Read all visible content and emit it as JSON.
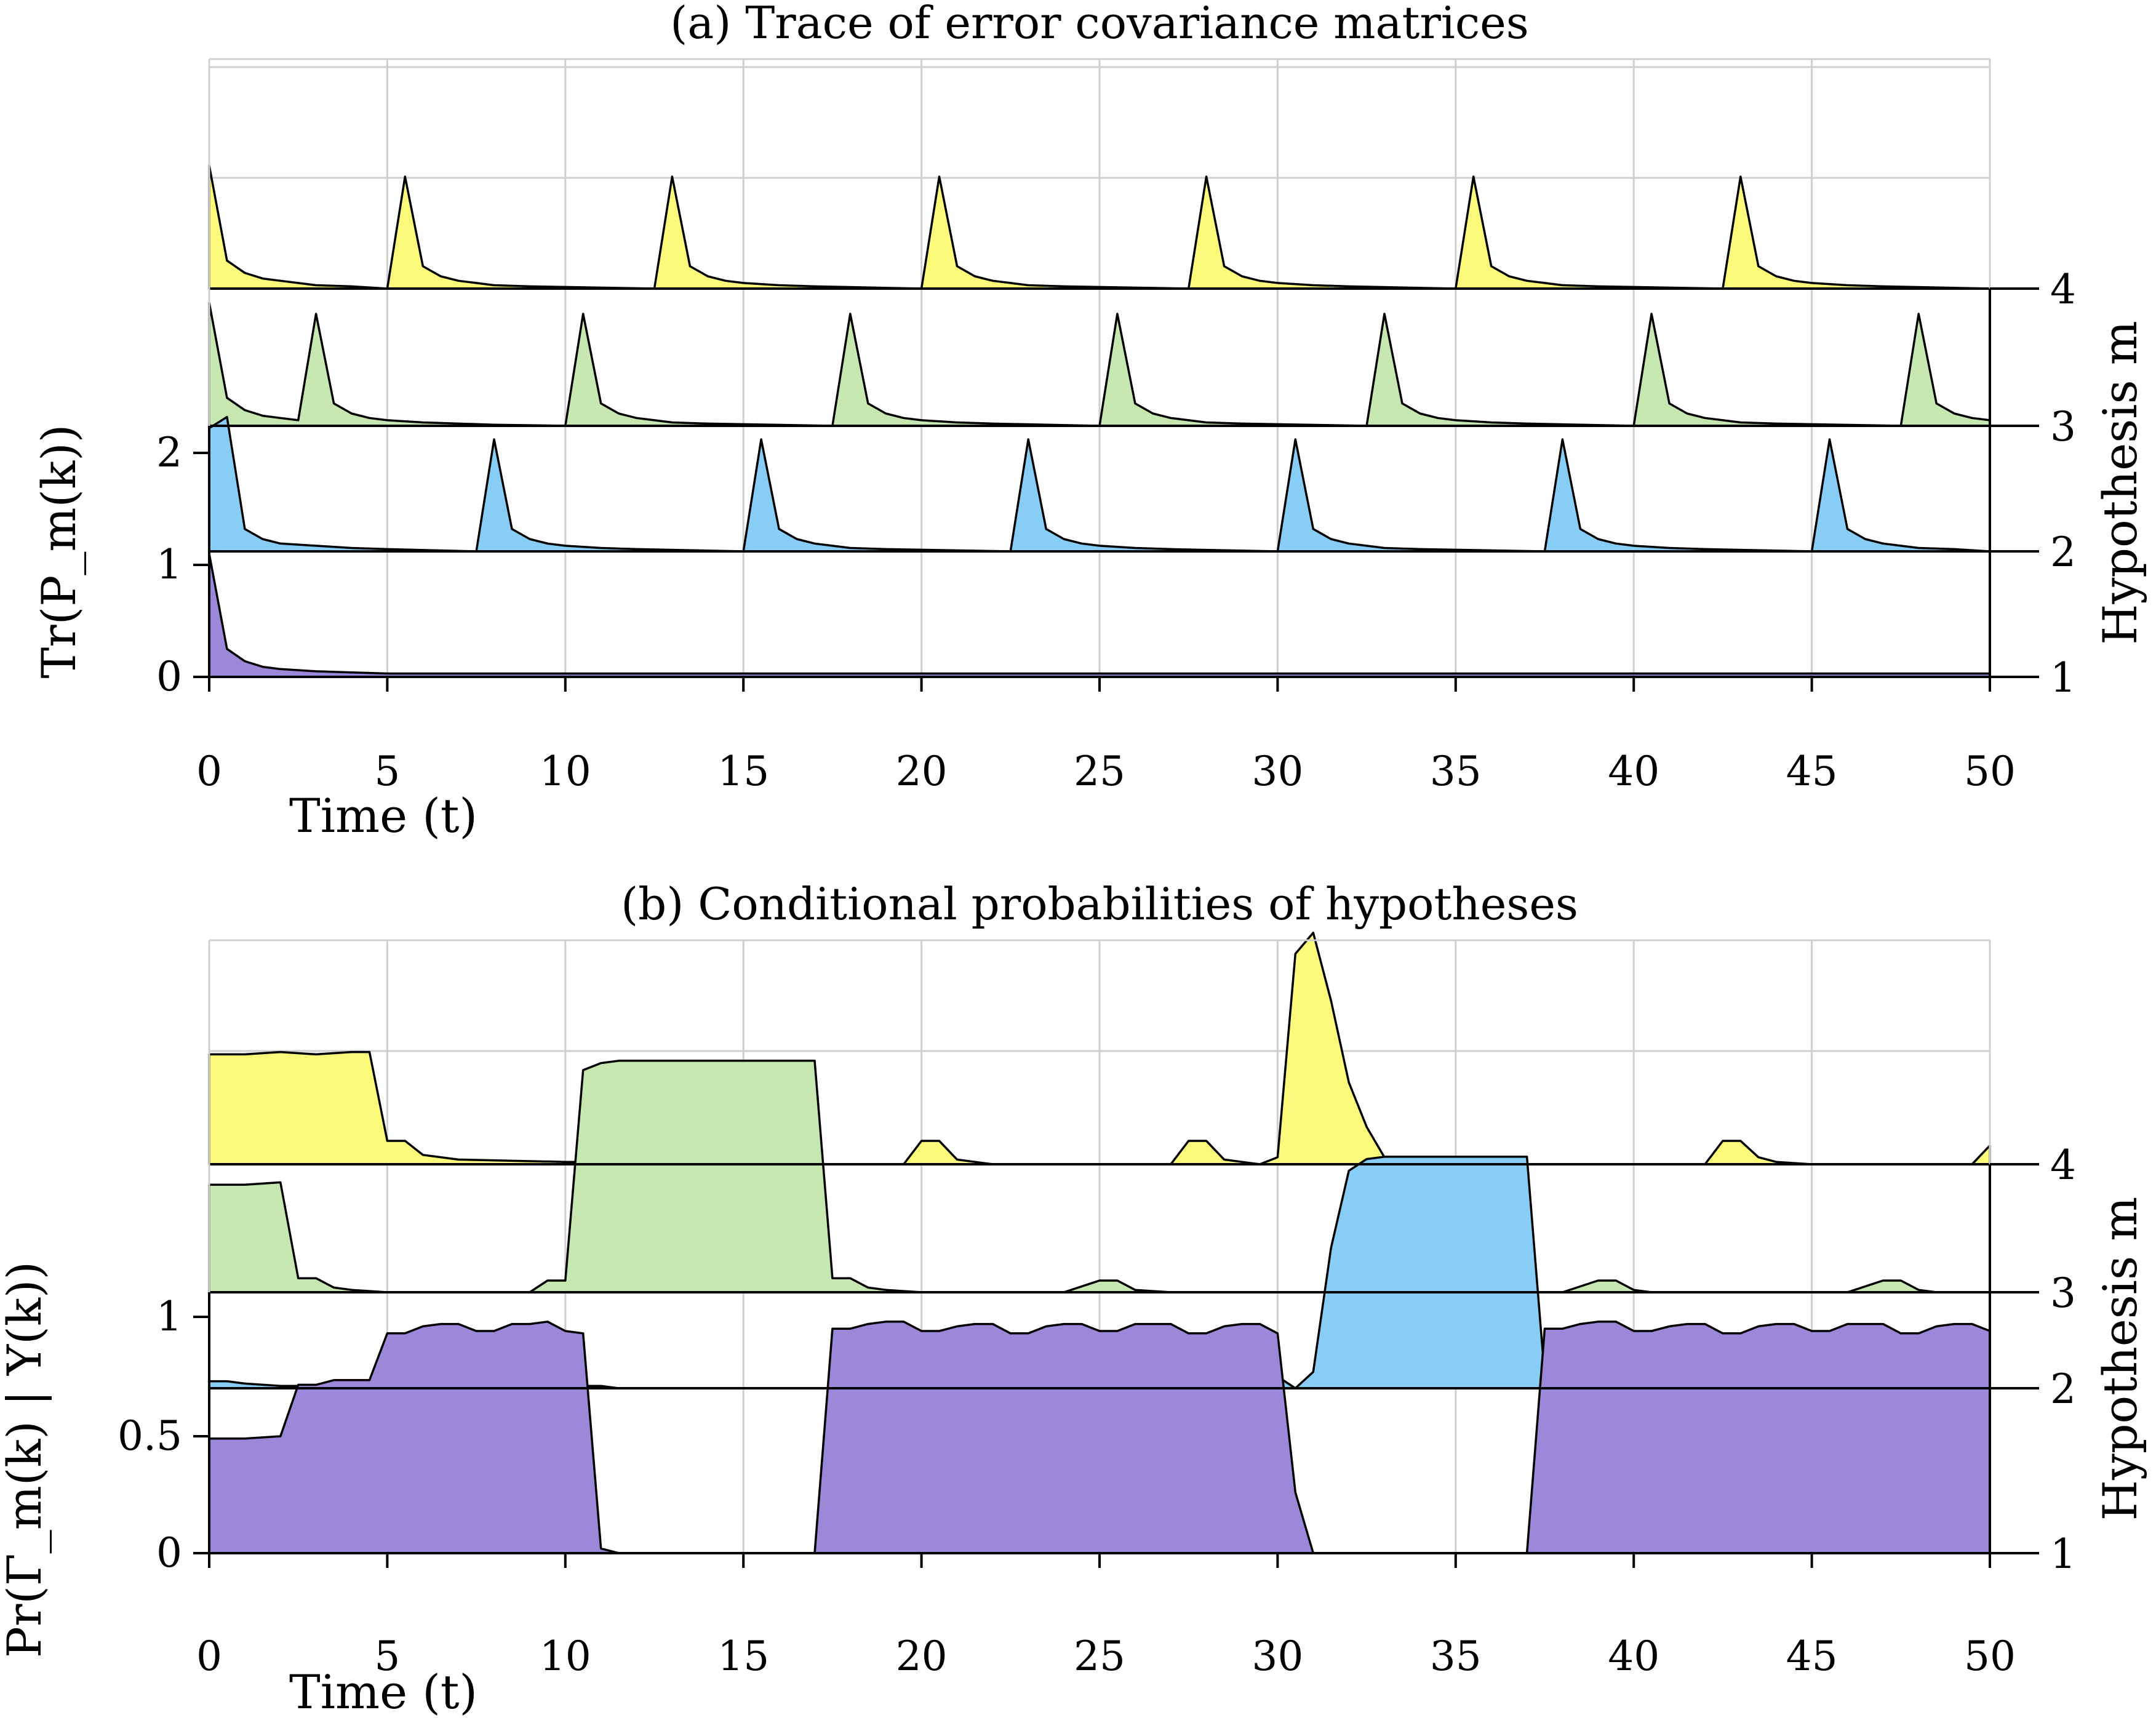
{
  "chart_data": [
    {
      "type": "area",
      "title": "(a) Trace of error covariance matrices",
      "xlabel": "Time (t)",
      "ylabel": "Tr(P_m(k))",
      "ylabel2": "Hypothesis m",
      "xlim": [
        0,
        50
      ],
      "xticks": [
        "0",
        "5",
        "10",
        "15",
        "20",
        "25",
        "30",
        "35",
        "40",
        "45",
        "50"
      ],
      "yticks": [
        "0",
        "1",
        "2"
      ],
      "yticks2": [
        "1",
        "2",
        "3",
        "4"
      ],
      "grid": true,
      "series": [
        {
          "hypothesis": 1,
          "color": "#9b88d9",
          "x": [
            0,
            0.5,
            1,
            1.5,
            2,
            3,
            4,
            5,
            10,
            20,
            30,
            40,
            50
          ],
          "values": [
            1.1,
            0.25,
            0.14,
            0.09,
            0.07,
            0.05,
            0.04,
            0.03,
            0.03,
            0.03,
            0.03,
            0.03,
            0.03
          ]
        },
        {
          "hypothesis": 2,
          "color": "#88cdf6",
          "x": [
            0,
            0.5,
            1,
            1.5,
            2,
            3,
            4,
            5,
            7.5,
            8,
            8.5,
            9,
            9.5,
            10,
            11,
            12,
            15,
            15.5,
            16,
            16.5,
            17,
            17.5,
            18,
            19,
            22.5,
            23,
            23.5,
            24,
            24.5,
            25,
            26,
            27,
            30,
            30.5,
            31,
            31.5,
            32,
            32.5,
            33,
            34,
            37.5,
            38,
            38.5,
            39,
            39.5,
            40,
            41,
            42,
            45,
            45.5,
            46,
            46.5,
            47,
            47.5,
            48,
            49,
            50
          ],
          "values": [
            1.1,
            1.2,
            0.2,
            0.11,
            0.07,
            0.05,
            0.03,
            0.02,
            0.0,
            1.0,
            0.2,
            0.11,
            0.07,
            0.05,
            0.03,
            0.02,
            0.0,
            1.0,
            0.2,
            0.11,
            0.07,
            0.05,
            0.03,
            0.02,
            0.0,
            1.0,
            0.2,
            0.11,
            0.07,
            0.05,
            0.03,
            0.02,
            0.0,
            1.0,
            0.2,
            0.11,
            0.07,
            0.05,
            0.03,
            0.02,
            0.0,
            1.0,
            0.2,
            0.11,
            0.07,
            0.05,
            0.03,
            0.02,
            0.0,
            1.0,
            0.2,
            0.11,
            0.07,
            0.05,
            0.03,
            0.02,
            0.0
          ]
        },
        {
          "hypothesis": 3,
          "color": "#c6e8b0",
          "x": [
            0,
            0.5,
            1,
            1.5,
            2,
            2.5,
            3,
            3.5,
            4,
            4.5,
            5,
            6,
            7,
            8,
            10,
            10.5,
            11,
            11.5,
            12,
            12.5,
            13,
            14,
            17.5,
            18,
            18.5,
            19,
            19.5,
            20,
            21,
            22,
            25,
            25.5,
            26,
            26.5,
            27,
            27.5,
            28,
            29,
            32.5,
            33,
            33.5,
            34,
            34.5,
            35,
            36,
            37,
            40,
            40.5,
            41,
            41.5,
            42,
            42.5,
            43,
            44,
            47.5,
            48,
            48.5,
            49,
            49.5,
            50
          ],
          "values": [
            1.1,
            0.25,
            0.14,
            0.09,
            0.07,
            0.05,
            1.0,
            0.2,
            0.11,
            0.07,
            0.05,
            0.03,
            0.02,
            0.01,
            0.0,
            1.0,
            0.2,
            0.11,
            0.07,
            0.05,
            0.03,
            0.02,
            0.0,
            1.0,
            0.2,
            0.11,
            0.07,
            0.05,
            0.03,
            0.02,
            0.0,
            1.0,
            0.2,
            0.11,
            0.07,
            0.05,
            0.03,
            0.02,
            0.0,
            1.0,
            0.2,
            0.11,
            0.07,
            0.05,
            0.03,
            0.02,
            0.0,
            1.0,
            0.2,
            0.11,
            0.07,
            0.05,
            0.03,
            0.02,
            0.0,
            1.0,
            0.2,
            0.11,
            0.07,
            0.05
          ]
        },
        {
          "hypothesis": 4,
          "color": "#fcfa7a",
          "x": [
            0,
            0.5,
            1,
            1.5,
            2,
            2.5,
            3,
            4,
            5,
            5.5,
            6,
            6.5,
            7,
            7.5,
            8,
            9,
            12.5,
            13,
            13.5,
            14,
            14.5,
            15,
            16,
            17,
            20,
            20.5,
            21,
            21.5,
            22,
            22.5,
            23,
            24,
            27.5,
            28,
            28.5,
            29,
            29.5,
            30,
            31,
            32,
            35,
            35.5,
            36,
            36.5,
            37,
            37.5,
            38,
            39,
            42.5,
            43,
            43.5,
            44,
            44.5,
            45,
            46,
            47,
            50
          ],
          "values": [
            1.1,
            0.25,
            0.14,
            0.09,
            0.07,
            0.05,
            0.03,
            0.02,
            0.0,
            1.0,
            0.2,
            0.11,
            0.07,
            0.05,
            0.03,
            0.02,
            0.0,
            1.0,
            0.2,
            0.11,
            0.07,
            0.05,
            0.03,
            0.02,
            0.0,
            1.0,
            0.2,
            0.11,
            0.07,
            0.05,
            0.03,
            0.02,
            0.0,
            1.0,
            0.2,
            0.11,
            0.07,
            0.05,
            0.03,
            0.02,
            0.0,
            1.0,
            0.2,
            0.11,
            0.07,
            0.05,
            0.03,
            0.02,
            0.0,
            1.0,
            0.2,
            0.11,
            0.07,
            0.05,
            0.03,
            0.02,
            0.0
          ]
        }
      ]
    },
    {
      "type": "area",
      "title": "(b) Conditional probabilities of hypotheses",
      "xlabel": "Time (t)",
      "ylabel": "Pr(Γ_m(k) | Y(k))",
      "ylabel2": "Hypothesis m",
      "xlim": [
        0,
        50
      ],
      "xticks": [
        "0",
        "5",
        "10",
        "15",
        "20",
        "25",
        "30",
        "35",
        "40",
        "45",
        "50"
      ],
      "yticks": [
        "0",
        "0.5",
        "1"
      ],
      "yticks2": [
        "1",
        "2",
        "3",
        "4"
      ],
      "grid": true,
      "series": [
        {
          "hypothesis": 1,
          "color": "#9b88d9",
          "x": [
            0,
            1,
            2,
            2.5,
            3,
            3.5,
            4,
            4.5,
            5,
            5.5,
            6,
            6.5,
            7,
            7.5,
            8,
            8.5,
            9,
            9.5,
            10,
            10.5,
            11,
            11.5,
            12,
            17,
            17.5,
            18,
            18.5,
            19,
            19.5,
            20,
            20.5,
            21,
            21.5,
            22,
            22.5,
            23,
            23.5,
            24,
            24.5,
            25,
            25.5,
            26,
            26.5,
            27,
            27.5,
            28,
            28.5,
            29,
            29.5,
            30,
            30.5,
            31,
            37,
            37.5,
            38,
            38.5,
            39,
            39.5,
            40,
            40.5,
            41,
            41.5,
            42,
            42.5,
            43,
            43.5,
            44,
            44.5,
            45,
            45.5,
            46,
            46.5,
            47,
            47.5,
            48,
            48.5,
            49,
            49.5,
            50
          ],
          "values": [
            0.49,
            0.49,
            0.5,
            0.72,
            0.72,
            0.74,
            0.74,
            0.74,
            0.94,
            0.94,
            0.97,
            0.98,
            0.98,
            0.95,
            0.95,
            0.98,
            0.98,
            0.99,
            0.95,
            0.94,
            0.02,
            0.0,
            0.0,
            0.0,
            0.96,
            0.96,
            0.98,
            0.99,
            0.99,
            0.95,
            0.95,
            0.97,
            0.98,
            0.98,
            0.94,
            0.94,
            0.97,
            0.98,
            0.98,
            0.95,
            0.95,
            0.98,
            0.98,
            0.98,
            0.94,
            0.94,
            0.97,
            0.98,
            0.98,
            0.94,
            0.26,
            0.0,
            0.0,
            0.96,
            0.96,
            0.98,
            0.99,
            0.99,
            0.95,
            0.95,
            0.97,
            0.98,
            0.98,
            0.94,
            0.94,
            0.97,
            0.98,
            0.98,
            0.95,
            0.95,
            0.98,
            0.98,
            0.98,
            0.94,
            0.94,
            0.97,
            0.98,
            0.98,
            0.95
          ]
        },
        {
          "hypothesis": 2,
          "color": "#88cdf6",
          "x": [
            0,
            0.5,
            1,
            2,
            3,
            4,
            5,
            6,
            7,
            7.5,
            8,
            8.5,
            9,
            10,
            10.5,
            11,
            11.5,
            12,
            29.5,
            30,
            30.5,
            31,
            31.5,
            32,
            32.5,
            33,
            33.5,
            34,
            35,
            36,
            37,
            37.5,
            38,
            38.5,
            39,
            40,
            42,
            44,
            45,
            45.5,
            46,
            46.5,
            47,
            50
          ],
          "values": [
            0.03,
            0.03,
            0.02,
            0.01,
            0.01,
            0.01,
            0.01,
            0.0,
            0.0,
            0.05,
            0.05,
            0.02,
            0.01,
            0.0,
            0.01,
            0.01,
            0.0,
            0.0,
            0.0,
            0.05,
            0.0,
            0.07,
            0.6,
            0.93,
            0.98,
            0.99,
            0.99,
            0.99,
            0.99,
            0.99,
            0.99,
            0.05,
            0.04,
            0.02,
            0.01,
            0.0,
            0.0,
            0.0,
            0.0,
            0.05,
            0.05,
            0.02,
            0.0,
            0.0
          ]
        },
        {
          "hypothesis": 3,
          "color": "#c6e8b0",
          "x": [
            0,
            1,
            2,
            2.5,
            3,
            3.5,
            4,
            5,
            8,
            9,
            9.5,
            10,
            10.5,
            11,
            11.5,
            12,
            13,
            14,
            15,
            16,
            17,
            17.5,
            18,
            18.5,
            19,
            20,
            24,
            25,
            25.5,
            26,
            27,
            30,
            31,
            38,
            39,
            39.5,
            40,
            40.5,
            41,
            42,
            46,
            47,
            47.5,
            48,
            48.5,
            49,
            50
          ],
          "values": [
            0.46,
            0.46,
            0.47,
            0.06,
            0.06,
            0.02,
            0.01,
            0.0,
            0.0,
            0.0,
            0.05,
            0.05,
            0.95,
            0.98,
            0.99,
            0.99,
            0.99,
            0.99,
            0.99,
            0.99,
            0.99,
            0.06,
            0.06,
            0.02,
            0.01,
            0.0,
            0.0,
            0.05,
            0.05,
            0.01,
            0.0,
            0.0,
            0.0,
            0.0,
            0.05,
            0.05,
            0.01,
            0.0,
            0.0,
            0.0,
            0.0,
            0.05,
            0.05,
            0.01,
            0.0,
            0.0,
            0.0
          ]
        },
        {
          "hypothesis": 4,
          "color": "#fcfa7a",
          "x": [
            0,
            1,
            2,
            3,
            4,
            4.5,
            5,
            5.5,
            6,
            7,
            10,
            10.5,
            11,
            19.5,
            20,
            20.5,
            21,
            21.5,
            22,
            27,
            27.5,
            28,
            28.5,
            29,
            29.5,
            30,
            30.5,
            31,
            31.5,
            32,
            32.5,
            33,
            35,
            42,
            42.5,
            43,
            43.5,
            44,
            45,
            49.5,
            50
          ],
          "values": [
            0.47,
            0.47,
            0.48,
            0.47,
            0.48,
            0.48,
            0.1,
            0.1,
            0.04,
            0.02,
            0.01,
            0.01,
            0.0,
            0.0,
            0.1,
            0.1,
            0.02,
            0.01,
            0.0,
            0.0,
            0.1,
            0.1,
            0.02,
            0.01,
            0.0,
            0.03,
            0.9,
            0.99,
            0.7,
            0.35,
            0.16,
            0.03,
            0.0,
            0.0,
            0.1,
            0.1,
            0.03,
            0.01,
            0.0,
            0.0,
            0.08
          ]
        }
      ]
    }
  ]
}
